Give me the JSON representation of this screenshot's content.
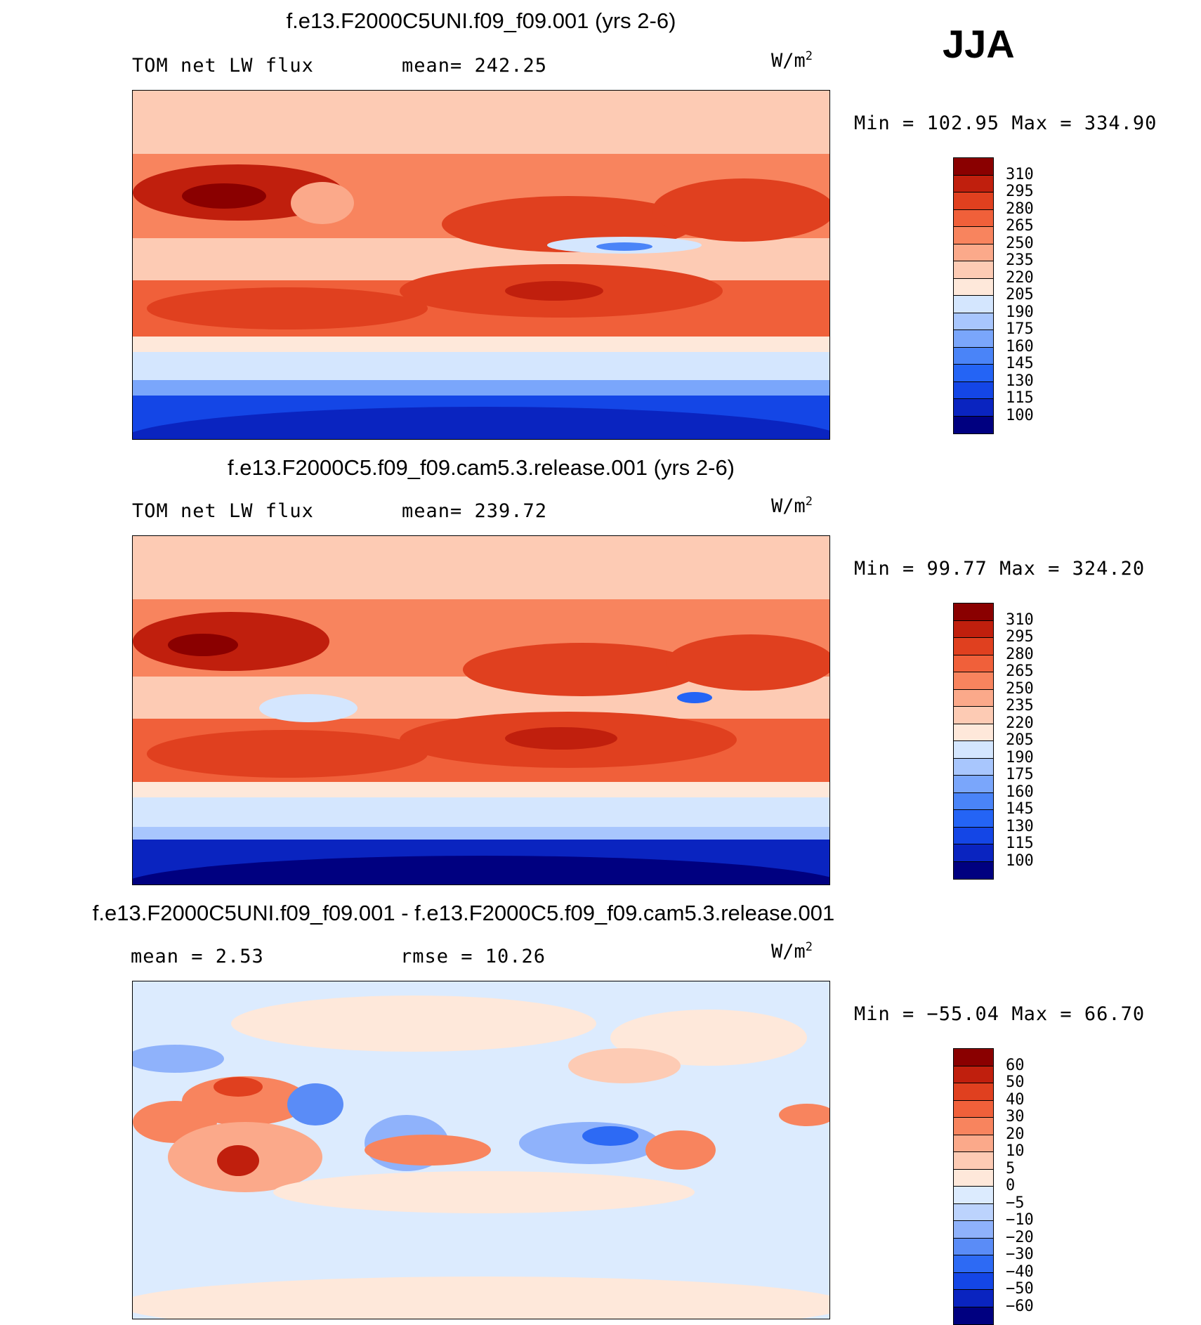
{
  "season": "JJA",
  "colors": {
    "abs_levels": [
      "#000080",
      "#0a24c0",
      "#1446e6",
      "#2464f5",
      "#4a84f8",
      "#7aa6fb",
      "#a8c6fd",
      "#d4e6fe",
      "#fee8da",
      "#fdcbb4",
      "#fba98a",
      "#f8845e",
      "#f0603a",
      "#e0401f",
      "#c01f0d",
      "#8a0000"
    ],
    "diff_levels": [
      "#000080",
      "#0a24c0",
      "#1446e6",
      "#2d6af4",
      "#5a8cf7",
      "#8fb2fb",
      "#bcd3fd",
      "#dcebfe",
      "#fee8da",
      "#fdcbb4",
      "#fba98a",
      "#f8845e",
      "#f0603a",
      "#e0401f",
      "#c01f0d",
      "#8a0000"
    ]
  },
  "panels": [
    {
      "title": "f.e13.F2000C5UNI.f09_f09.001 (yrs 2-6)",
      "left_label": "TOM net LW flux",
      "mid_label": "mean=  242.25",
      "unit": "W/m",
      "unit_exp": "2",
      "minmax": "Min  =  102.95  Max  =  334.90",
      "ticks": [
        "310",
        "295",
        "280",
        "265",
        "250",
        "235",
        "220",
        "205",
        "190",
        "175",
        "160",
        "145",
        "130",
        "115",
        "100"
      ]
    },
    {
      "title": "f.e13.F2000C5.f09_f09.cam5.3.release.001 (yrs 2-6)",
      "left_label": "TOM net LW flux",
      "mid_label": "mean=  239.72",
      "unit": "W/m",
      "unit_exp": "2",
      "minmax": "Min  =   99.77  Max  =  324.20",
      "ticks": [
        "310",
        "295",
        "280",
        "265",
        "250",
        "235",
        "220",
        "205",
        "190",
        "175",
        "160",
        "145",
        "130",
        "115",
        "100"
      ]
    },
    {
      "title": "f.e13.F2000C5UNI.f09_f09.001 - f.e13.F2000C5.f09_f09.cam5.3.release.001",
      "left_label": "mean  =     2.53",
      "mid_label": "rmse  =    10.26",
      "unit": "W/m",
      "unit_exp": "2",
      "minmax": "Min  =  −55.04  Max  =   66.70",
      "ticks": [
        "60",
        "50",
        "40",
        "30",
        "20",
        "10",
        "5",
        "0",
        "−5",
        "−10",
        "−20",
        "−30",
        "−40",
        "−50",
        "−60"
      ]
    }
  ]
}
